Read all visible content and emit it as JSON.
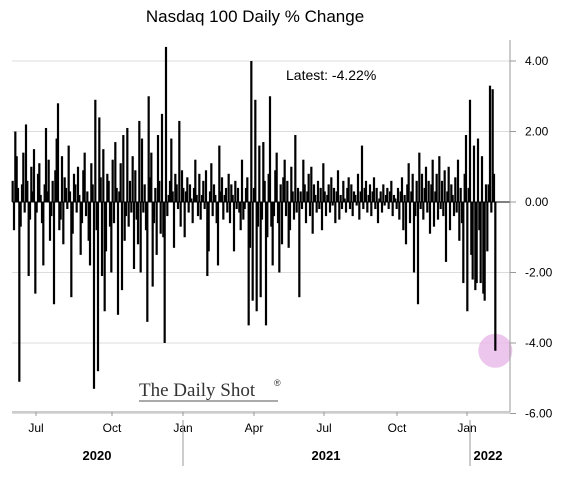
{
  "chart_data": {
    "type": "bar",
    "title": "Nasdaq 100 Daily % Change",
    "annotation": "Latest:  -4.22%",
    "watermark": "The Daily Shot",
    "watermark_mark": "®",
    "xlabel": "",
    "ylabel": "",
    "ylim": [
      -6,
      4.5
    ],
    "y_ticks": [
      4,
      2,
      0,
      -2,
      -4,
      -6
    ],
    "y_tick_labels": [
      "4.00",
      "2.00",
      "0.00",
      "-2.00",
      "-4.00",
      "-6.00"
    ],
    "y_axis_side": "right",
    "x_ticks": [
      "Jul",
      "Oct",
      "Jan",
      "Apr",
      "Jul",
      "Oct",
      "Jan"
    ],
    "year_labels": [
      "2020",
      "2021",
      "2022"
    ],
    "grid": true,
    "bar_color": "#000000",
    "highlight_color": "#e8b8e8",
    "highlight_value": -4.22,
    "date_range": [
      "2020-06",
      "2022-01"
    ],
    "series": [
      {
        "values": [
          0.6,
          -0.8,
          2.0,
          1.3,
          0.4,
          -5.1,
          -0.7,
          0.5,
          1.4,
          -0.3,
          2.2,
          0.6,
          -2.1,
          -0.5,
          1.0,
          0.3,
          1.5,
          -2.6,
          -0.3,
          0.8,
          1.1,
          0.2,
          -0.6,
          -1.8,
          0.5,
          2.1,
          0.3,
          1.2,
          -1.1,
          -0.4,
          0.6,
          -2.9,
          0.9,
          1.8,
          2.8,
          -0.8,
          -0.5,
          1.3,
          -1.2,
          0.7,
          0.4,
          -0.2,
          1.6,
          0.3,
          -2.7,
          -0.9,
          0.8,
          0.5,
          -0.3,
          1.0,
          0.2,
          -1.5,
          -0.6,
          0.9,
          1.4,
          -0.4,
          0.3,
          -1.1,
          -1.8,
          1.1,
          0.5,
          -5.3,
          2.9,
          -0.8,
          -4.8,
          2.4,
          0.7,
          -2.1,
          1.5,
          -3.1,
          -1.4,
          0.8,
          0.6,
          -0.7,
          -2.0,
          1.2,
          -0.6,
          1.7,
          0.4,
          -3.2,
          0.3,
          1.1,
          -2.5,
          1.9,
          -1.1,
          -0.4,
          2.1,
          -0.7,
          0.6,
          -0.3,
          1.3,
          -1.9,
          0.9,
          -0.5,
          -1.2,
          2.3,
          -2.0,
          1.8,
          -0.3,
          0.5,
          -0.8,
          -3.4,
          3.0,
          0.7,
          1.4,
          -2.4,
          -0.6,
          0.4,
          -1.5,
          1.9,
          0.6,
          -0.9,
          2.5,
          -1.0,
          -4.0,
          4.4,
          -0.4,
          0.2,
          0.6,
          1.8,
          0.3,
          -1.3,
          0.8,
          0.5,
          -0.2,
          2.3,
          -0.7,
          0.9,
          0.4,
          -1.0,
          0.3,
          0.7,
          -0.3,
          0.5,
          0.1,
          -0.6,
          0.4,
          1.2,
          0.2,
          -0.4,
          0.8,
          -0.5,
          0.2,
          0.6,
          -0.2,
          0.9,
          -2.1,
          -1.4,
          0.3,
          1.1,
          -0.4,
          0.5,
          0.2,
          -0.6,
          -1.8,
          1.6,
          0.3,
          0.7,
          -0.5,
          0.2,
          0.4,
          -0.3,
          0.8,
          -0.6,
          0.5,
          0.2,
          -1.4,
          0.6,
          -0.2,
          0.4,
          -0.3,
          -0.8,
          1.2,
          -0.5,
          -0.2,
          0.4,
          0.7,
          -3.5,
          -1.3,
          4.0,
          -2.8,
          0.4,
          2.9,
          -3.1,
          -0.7,
          1.6,
          -2.7,
          -0.5,
          1.7,
          0.6,
          -3.5,
          -1.0,
          0.8,
          3.0,
          -0.7,
          -1.8,
          -0.4,
          0.9,
          1.4,
          -0.6,
          -2.0,
          0.5,
          -1.2,
          0.7,
          1.2,
          -0.4,
          0.6,
          -1.3,
          -0.8,
          1.0,
          0.3,
          -0.5,
          1.9,
          -0.3,
          0.4,
          -2.7,
          0.3,
          -0.2,
          1.2,
          0.5,
          -0.6,
          0.3,
          0.8,
          -0.4,
          1.0,
          -0.9,
          0.5,
          0.2,
          -0.3,
          0.6,
          -0.2,
          0.4,
          -0.8,
          1.1,
          0.3,
          -0.4,
          0.2,
          0.5,
          -0.3,
          0.7,
          -0.1,
          0.4,
          -0.6,
          0.3,
          0.9,
          -0.5,
          0.2,
          -0.2,
          0.6,
          0.1,
          -0.3,
          0.4,
          0.7,
          -0.2,
          0.5,
          -0.4,
          0.3,
          0.2,
          -0.1,
          0.8,
          -0.5,
          0.3,
          1.6,
          -0.2,
          0.4,
          0.6,
          -0.3,
          0.2,
          0.5,
          -0.4,
          0.3,
          0.7,
          -0.2,
          0.4,
          -0.6,
          0.1,
          0.3,
          -0.3,
          0.5,
          -0.1,
          0.2,
          0.4,
          -0.2,
          0.3,
          0.6,
          -0.4,
          0.2,
          0.1,
          -0.2,
          0.4,
          -0.5,
          0.3,
          0.7,
          -0.8,
          0.2,
          -1.2,
          0.5,
          1.1,
          -0.6,
          0.3,
          0.8,
          -2.0,
          -0.4,
          0.6,
          -2.9,
          1.4,
          -0.2,
          0.8,
          -0.5,
          0.4,
          1.0,
          -0.3,
          0.6,
          -0.9,
          0.5,
          1.2,
          -0.7,
          0.3,
          0.8,
          -0.5,
          1.3,
          -0.2,
          0.6,
          -0.4,
          0.9,
          -1.7,
          0.3,
          1.0,
          -0.8,
          0.5,
          0.2,
          -0.4,
          0.7,
          -0.3,
          1.2,
          -1.1,
          0.4,
          -0.6,
          -2.3,
          0.8,
          1.9,
          -3.1,
          0.4,
          2.9,
          -1.5,
          -2.2,
          1.6,
          -2.5,
          -2.3,
          1.8,
          -0.8,
          -2.3,
          1.3,
          -2.6,
          -2.8,
          0.5,
          -1.4,
          0.5,
          3.3,
          -0.3,
          3.2,
          0.8,
          -4.22
        ]
      }
    ]
  }
}
